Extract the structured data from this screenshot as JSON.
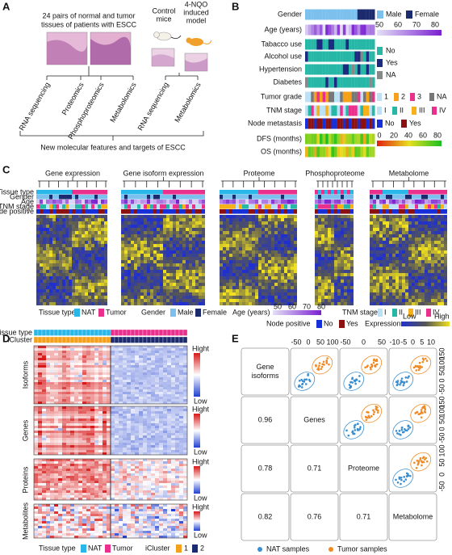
{
  "panel_a": {
    "label": "A",
    "cohort": [
      "24 pairs of normal and tumor",
      "tissues of patients with ESCC"
    ],
    "mouse_control": [
      "Control",
      "mice"
    ],
    "mouse_model": [
      "4-NQO",
      "induced",
      "model"
    ],
    "human_omics": [
      "RNA sequencing",
      "Proteomics",
      "Phosphoproteomics",
      "Metabolomics"
    ],
    "mouse_omics": [
      "RNA sequencing",
      "Metabolomics"
    ],
    "conclusion": "New molecular features and targets of ESCC"
  },
  "panel_b": {
    "label": "B",
    "rows": [
      "Gender",
      "Age (years)",
      "Tabacco use",
      "Alcohol use",
      "Hypertension",
      "Diabetes",
      "Tumor grade",
      "TNM stage",
      "Node metastasis",
      "DFS (months)",
      "OS (months)"
    ],
    "gender_legend": [
      "Male",
      "Female"
    ],
    "age_ticks": [
      50,
      60,
      70,
      80
    ],
    "binary_legend": [
      "No",
      "Yes",
      "NA"
    ],
    "grade_legend": [
      "1",
      "2",
      "3",
      "NA"
    ],
    "tnm_legend": [
      "I",
      "II",
      "III",
      "IV"
    ],
    "node_legend": [
      "No",
      "Yes"
    ],
    "months_ticks": [
      0,
      20,
      40,
      60,
      80
    ]
  },
  "panel_c": {
    "label": "C",
    "titles": [
      "Gene expression",
      "Gene isoform expression",
      "Proteome",
      "Phosphoproteome",
      "Metabolome"
    ],
    "track_labels": [
      "Tissue type",
      "Gender",
      "Age",
      "TNM stage",
      "Node positive"
    ],
    "legend": {
      "tissue_title": "Tissue type",
      "tissue": [
        "NAT",
        "Tumor"
      ],
      "gender_title": "Gender",
      "gender": [
        "Male",
        "Female"
      ],
      "age_title": "Age (years)",
      "age_ticks": [
        50,
        60,
        70,
        80
      ],
      "tnm_title": "TNM stage",
      "tnm": [
        "I",
        "II",
        "III",
        "IV"
      ],
      "node_title": "Node positive",
      "node": [
        "No",
        "Yes"
      ],
      "expression_title": "Expression",
      "expression": [
        "Low",
        "High"
      ]
    }
  },
  "panel_d": {
    "label": "D",
    "track_labels": [
      "Tissue type",
      "iCluster"
    ],
    "blocks": [
      "Isoforms",
      "Genes",
      "Proteins",
      "Metabolites"
    ],
    "scale": [
      "Hight",
      "Low"
    ],
    "legend": {
      "tissue_title": "Tissue type",
      "tissue": [
        "NAT",
        "Tumor"
      ],
      "cluster_title": "iCluster",
      "cluster": [
        "1",
        "2"
      ]
    }
  },
  "panel_e": {
    "label": "E",
    "diagonal": [
      [
        "Gene",
        "isoforms"
      ],
      [
        "Genes"
      ],
      [
        "Proteome"
      ],
      [
        "Metabolome"
      ]
    ],
    "correlations": [
      [
        0.96
      ],
      [
        0.78,
        0.71
      ],
      [
        0.82,
        0.76,
        0.71
      ]
    ],
    "top_ticks": [
      [
        -50,
        0,
        50,
        100
      ],
      [
        -50,
        0,
        50
      ],
      [
        -10,
        -5,
        0,
        5,
        10
      ]
    ],
    "right_ticks": [
      [
        150,
        100,
        50,
        0,
        -50
      ],
      [
        150,
        100,
        50,
        0,
        -50
      ],
      [
        100,
        50,
        0,
        -50
      ]
    ],
    "legend": [
      "NAT samples",
      "Tumor samples"
    ]
  }
}
